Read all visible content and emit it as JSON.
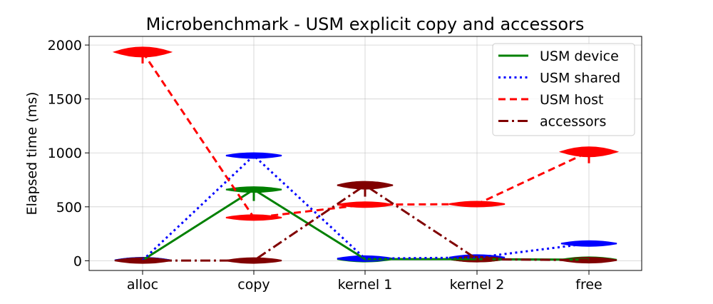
{
  "chart_data": {
    "type": "line",
    "title": "Microbenchmark - USM explicit copy and accessors",
    "xlabel": "",
    "ylabel": "Elapsed time (ms)",
    "categories": [
      "alloc",
      "copy",
      "kernel 1",
      "kernel 2",
      "free"
    ],
    "ylim": [
      -90,
      2080
    ],
    "yticks": [
      0,
      500,
      1000,
      1500,
      2000
    ],
    "grid": true,
    "legend_position": "top-right",
    "series": [
      {
        "name": "USM device",
        "color": "#008000",
        "style": "solid",
        "values": [
          5,
          660,
          15,
          15,
          10
        ]
      },
      {
        "name": "USM shared",
        "color": "#0000ff",
        "style": "dotted",
        "values": [
          5,
          975,
          20,
          30,
          160
        ]
      },
      {
        "name": "USM host",
        "color": "#ff0000",
        "style": "dashed",
        "values": [
          1935,
          400,
          520,
          525,
          1010
        ]
      },
      {
        "name": "accessors",
        "color": "#800000",
        "style": "dashdot",
        "values": [
          2,
          2,
          700,
          15,
          5
        ]
      }
    ]
  }
}
